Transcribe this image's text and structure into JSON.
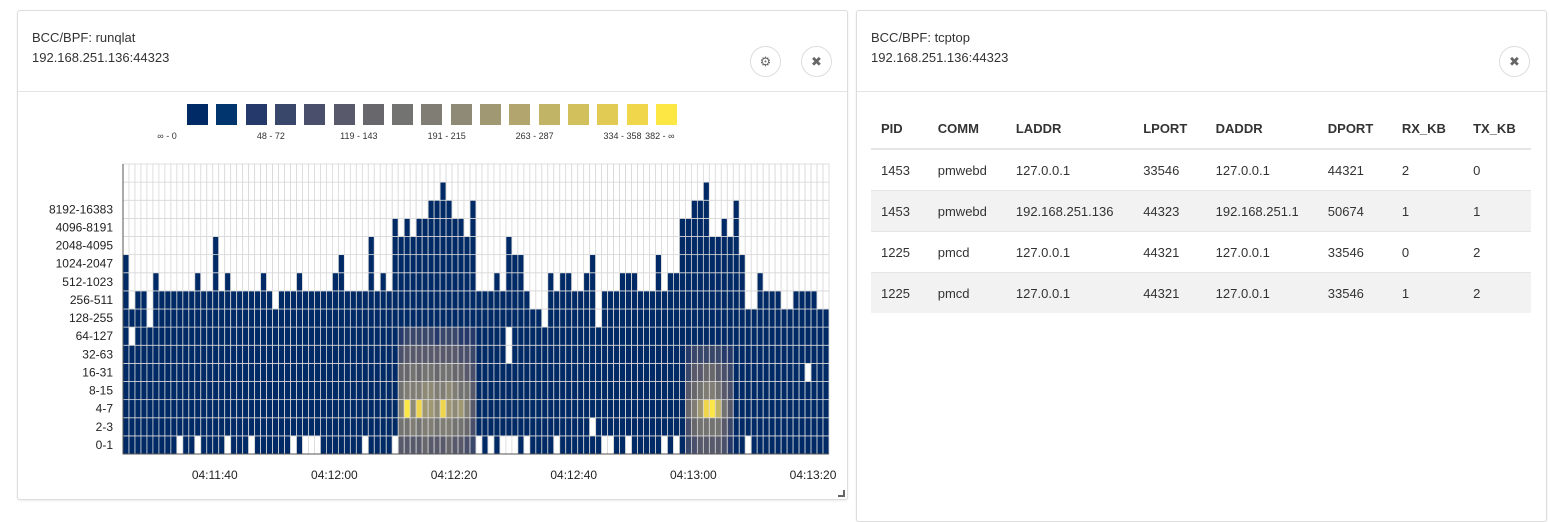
{
  "left_panel": {
    "title": "BCC/BPF: runqlat",
    "host": "192.168.251.136:44323",
    "settings_icon": "gear-icon",
    "close_icon": "close-icon"
  },
  "right_panel": {
    "title": "BCC/BPF: tcptop",
    "host": "192.168.251.136:44323",
    "close_icon": "close-icon",
    "table": {
      "columns": [
        "PID",
        "COMM",
        "LADDR",
        "LPORT",
        "DADDR",
        "DPORT",
        "RX_KB",
        "TX_KB"
      ],
      "rows": [
        [
          "1453",
          "pmwebd",
          "127.0.0.1",
          "33546",
          "127.0.0.1",
          "44321",
          "2",
          "0"
        ],
        [
          "1453",
          "pmwebd",
          "192.168.251.136",
          "44323",
          "192.168.251.1",
          "50674",
          "1",
          "1"
        ],
        [
          "1225",
          "pmcd",
          "127.0.0.1",
          "44321",
          "127.0.0.1",
          "33546",
          "0",
          "2"
        ],
        [
          "1225",
          "pmcd",
          "127.0.0.1",
          "44321",
          "127.0.0.1",
          "33546",
          "1",
          "2"
        ]
      ]
    }
  },
  "chart_data": {
    "type": "heatmap",
    "legend": {
      "colors": [
        "#002a66",
        "#00356e",
        "#25396a",
        "#39476b",
        "#4a506b",
        "#585a6c",
        "#68686c",
        "#737372",
        "#7f7d74",
        "#8e8a76",
        "#a09873",
        "#b2a66e",
        "#c2b466",
        "#d2c05c",
        "#e2cb55",
        "#f0d64a",
        "#fde745"
      ],
      "labels": [
        {
          "bin": 0,
          "text": "∞ - 0"
        },
        {
          "bin": 3,
          "text": "48 - 72"
        },
        {
          "bin": 6,
          "text": "119 - 143"
        },
        {
          "bin": 9,
          "text": "191 - 215"
        },
        {
          "bin": 12,
          "text": "263 - 287"
        },
        {
          "bin": 15,
          "text": "334 - 358"
        },
        {
          "bin": 16,
          "text": "382 - ∞"
        }
      ],
      "bin_width": 24
    },
    "y_labels": [
      "0-1",
      "2-3",
      "4-7",
      "8-15",
      "16-31",
      "32-63",
      "64-127",
      "128-255",
      "256-511",
      "512-1023",
      "1024-2047",
      "2048-4095",
      "4096-8191",
      "8192-16383"
    ],
    "y_bucket_count": 16,
    "x_tick_labels": [
      "04:11:40",
      "04:12:00",
      "04:12:20",
      "04:12:40",
      "04:13:00",
      "04:13:20"
    ],
    "x_tick_columns": [
      16,
      36,
      56,
      76,
      96,
      116
    ],
    "column_count": 118,
    "base_value": 5,
    "top_bucket_per_column": [
      10,
      7,
      8,
      8,
      8,
      9,
      8,
      8,
      8,
      8,
      8,
      8,
      9,
      8,
      8,
      11,
      8,
      9,
      8,
      8,
      8,
      8,
      8,
      9,
      8,
      7,
      8,
      8,
      8,
      9,
      8,
      8,
      8,
      8,
      8,
      9,
      10,
      8,
      8,
      8,
      8,
      11,
      8,
      9,
      8,
      12,
      11,
      12,
      11,
      12,
      12,
      13,
      13,
      14,
      13,
      12,
      12,
      11,
      13,
      8,
      8,
      8,
      9,
      8,
      11,
      10,
      10,
      8,
      7,
      7,
      7,
      9,
      8,
      9,
      9,
      8,
      8,
      9,
      10,
      7,
      8,
      8,
      8,
      9,
      9,
      9,
      8,
      8,
      8,
      10,
      8,
      9,
      9,
      12,
      12,
      13,
      13,
      14,
      11,
      11,
      12,
      11,
      13,
      10,
      7,
      7,
      9,
      8,
      8,
      8,
      8,
      7,
      8,
      8,
      8,
      8,
      7,
      7
    ],
    "empty_cells": [
      [
        9,
        0
      ],
      [
        12,
        0
      ],
      [
        17,
        0
      ],
      [
        21,
        0
      ],
      [
        28,
        0
      ],
      [
        30,
        0
      ],
      [
        31,
        0
      ],
      [
        32,
        0
      ],
      [
        40,
        0
      ],
      [
        45,
        0
      ],
      [
        59,
        0
      ],
      [
        61,
        0
      ],
      [
        63,
        0
      ],
      [
        64,
        0
      ],
      [
        65,
        0
      ],
      [
        67,
        0
      ],
      [
        72,
        0
      ],
      [
        80,
        0
      ],
      [
        81,
        0
      ],
      [
        84,
        0
      ],
      [
        90,
        0
      ],
      [
        92,
        0
      ],
      [
        104,
        0
      ],
      [
        1,
        6
      ],
      [
        4,
        8
      ],
      [
        4,
        7
      ],
      [
        64,
        5
      ],
      [
        64,
        6
      ],
      [
        70,
        7
      ],
      [
        78,
        1
      ],
      [
        79,
        7
      ],
      [
        110,
        8
      ],
      [
        114,
        4
      ]
    ],
    "hot_regions": [
      {
        "start_column": 46,
        "rows_from_bottom": [
          [
            120,
            130,
            140,
            130,
            150,
            140,
            130,
            140,
            150,
            130,
            120,
            110,
            80
          ],
          [
            170,
            190,
            200,
            190,
            210,
            200,
            190,
            200,
            210,
            190,
            180,
            160,
            110
          ],
          [
            200,
            390,
            230,
            370,
            240,
            250,
            230,
            380,
            260,
            230,
            240,
            200,
            130
          ],
          [
            180,
            200,
            210,
            200,
            220,
            230,
            200,
            210,
            220,
            200,
            190,
            170,
            120
          ],
          [
            150,
            160,
            170,
            160,
            180,
            170,
            160,
            170,
            180,
            160,
            150,
            130,
            100
          ],
          [
            110,
            120,
            130,
            120,
            140,
            130,
            120,
            130,
            140,
            120,
            110,
            100,
            80
          ],
          [
            70,
            80,
            90,
            80,
            90,
            80,
            70,
            80,
            90,
            80,
            70,
            60,
            50
          ]
        ]
      },
      {
        "start_column": 94,
        "rows_from_bottom": [
          [
            80,
            110,
            130,
            140,
            140,
            120,
            100,
            70
          ],
          [
            110,
            150,
            180,
            190,
            190,
            170,
            130,
            90
          ],
          [
            150,
            200,
            250,
            380,
            390,
            290,
            180,
            120
          ],
          [
            120,
            160,
            190,
            200,
            200,
            180,
            140,
            100
          ],
          [
            90,
            120,
            140,
            150,
            150,
            130,
            110,
            80
          ],
          [
            60,
            80,
            90,
            90,
            90,
            80,
            70,
            50
          ]
        ]
      }
    ]
  }
}
